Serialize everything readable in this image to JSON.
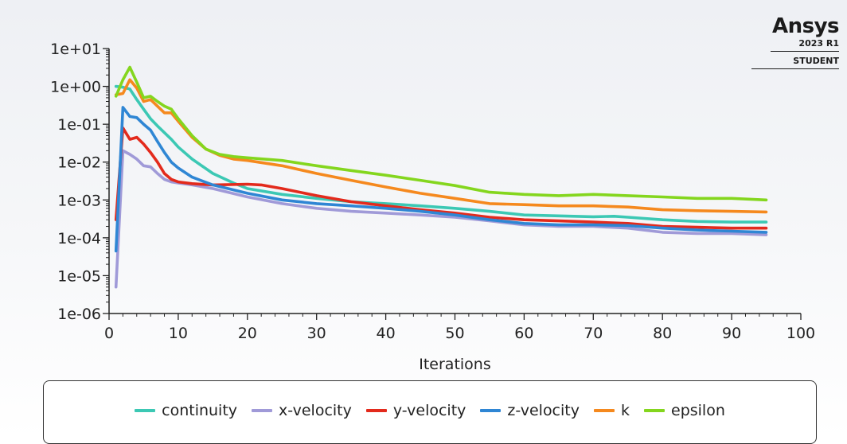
{
  "brand": {
    "name": "Ansys",
    "version": "2023 R1",
    "edition": "STUDENT"
  },
  "chart_data": {
    "type": "line",
    "title": "",
    "xlabel": "Iterations",
    "ylabel": "",
    "yscale": "log",
    "xlim": [
      0,
      100
    ],
    "ylim": [
      1e-06,
      10
    ],
    "xticks": [
      0,
      10,
      20,
      30,
      40,
      50,
      60,
      70,
      80,
      90,
      100
    ],
    "yticks": [
      10.0,
      1.0,
      0.1,
      0.01,
      0.001,
      0.0001,
      1e-05,
      1e-06
    ],
    "ytick_labels": [
      "1e+01",
      "1e+00",
      "1e-01",
      "1e-02",
      "1e-03",
      "1e-04",
      "1e-05",
      "1e-06"
    ],
    "grid": false,
    "legend_position": "bottom",
    "series": [
      {
        "name": "continuity",
        "color": "#3cc8b4",
        "x": [
          1,
          2,
          3,
          4,
          5,
          6,
          7,
          8,
          9,
          10,
          12,
          15,
          18,
          20,
          25,
          30,
          35,
          40,
          45,
          50,
          55,
          60,
          65,
          70,
          73,
          75,
          80,
          85,
          90,
          95
        ],
        "y": [
          1.0,
          0.95,
          0.85,
          0.45,
          0.25,
          0.14,
          0.09,
          0.06,
          0.04,
          0.025,
          0.012,
          0.005,
          0.0028,
          0.002,
          0.0014,
          0.0011,
          0.0009,
          0.0008,
          0.0007,
          0.0006,
          0.0005,
          0.0004,
          0.00038,
          0.00036,
          0.00037,
          0.00035,
          0.0003,
          0.00027,
          0.00026,
          0.00026
        ]
      },
      {
        "name": "x-velocity",
        "color": "#a09ad8",
        "x": [
          1,
          2,
          3,
          4,
          5,
          6,
          7,
          8,
          9,
          10,
          12,
          15,
          20,
          25,
          30,
          35,
          40,
          45,
          50,
          55,
          60,
          65,
          70,
          75,
          80,
          85,
          90,
          95
        ],
        "y": [
          5e-06,
          0.02,
          0.016,
          0.012,
          0.008,
          0.0075,
          0.005,
          0.0035,
          0.003,
          0.0028,
          0.0025,
          0.002,
          0.0012,
          0.0008,
          0.0006,
          0.0005,
          0.00045,
          0.0004,
          0.00035,
          0.00028,
          0.00022,
          0.0002,
          0.0002,
          0.00018,
          0.00014,
          0.00013,
          0.00013,
          0.00012
        ]
      },
      {
        "name": "y-velocity",
        "color": "#e32a1c",
        "x": [
          1,
          2,
          3,
          4,
          5,
          6,
          7,
          8,
          9,
          10,
          12,
          15,
          20,
          22,
          25,
          30,
          35,
          40,
          45,
          50,
          55,
          60,
          65,
          70,
          75,
          80,
          85,
          90,
          95
        ],
        "y": [
          0.0003,
          0.08,
          0.04,
          0.045,
          0.03,
          0.018,
          0.01,
          0.005,
          0.0035,
          0.003,
          0.0027,
          0.0025,
          0.0026,
          0.0025,
          0.002,
          0.0013,
          0.0009,
          0.0007,
          0.00055,
          0.00045,
          0.00035,
          0.0003,
          0.00028,
          0.00026,
          0.00024,
          0.0002,
          0.00019,
          0.00018,
          0.00018
        ]
      },
      {
        "name": "z-velocity",
        "color": "#2f86d4",
        "x": [
          1,
          2,
          3,
          4,
          5,
          6,
          7,
          8,
          9,
          10,
          12,
          15,
          20,
          25,
          30,
          35,
          40,
          45,
          50,
          55,
          60,
          65,
          70,
          75,
          80,
          85,
          90,
          95
        ],
        "y": [
          4.5e-05,
          0.28,
          0.16,
          0.15,
          0.1,
          0.07,
          0.035,
          0.018,
          0.01,
          0.007,
          0.004,
          0.0025,
          0.0015,
          0.001,
          0.0008,
          0.0007,
          0.0006,
          0.0005,
          0.0004,
          0.0003,
          0.00024,
          0.00022,
          0.00022,
          0.00021,
          0.00018,
          0.00016,
          0.00015,
          0.00014
        ]
      },
      {
        "name": "k",
        "color": "#f5891e",
        "x": [
          1,
          2,
          3,
          4,
          5,
          6,
          7,
          8,
          9,
          10,
          12,
          14,
          16,
          18,
          20,
          25,
          30,
          35,
          40,
          45,
          50,
          55,
          60,
          65,
          70,
          75,
          80,
          85,
          90,
          95
        ],
        "y": [
          0.6,
          0.65,
          1.5,
          0.9,
          0.4,
          0.45,
          0.3,
          0.2,
          0.2,
          0.12,
          0.045,
          0.022,
          0.015,
          0.012,
          0.011,
          0.008,
          0.005,
          0.0033,
          0.0022,
          0.0015,
          0.0011,
          0.0008,
          0.00075,
          0.0007,
          0.0007,
          0.00065,
          0.00055,
          0.00052,
          0.0005,
          0.00048
        ]
      },
      {
        "name": "epsilon",
        "color": "#84d61e",
        "x": [
          1,
          2,
          3,
          4,
          5,
          6,
          7,
          8,
          9,
          10,
          12,
          14,
          16,
          18,
          20,
          25,
          30,
          35,
          40,
          45,
          50,
          55,
          60,
          65,
          70,
          75,
          80,
          85,
          90,
          95
        ],
        "y": [
          0.55,
          1.5,
          3.2,
          1.3,
          0.5,
          0.55,
          0.4,
          0.3,
          0.25,
          0.14,
          0.05,
          0.022,
          0.016,
          0.014,
          0.013,
          0.011,
          0.008,
          0.006,
          0.0045,
          0.0033,
          0.0024,
          0.0016,
          0.0014,
          0.0013,
          0.0014,
          0.0013,
          0.0012,
          0.0011,
          0.0011,
          0.001
        ]
      }
    ]
  }
}
